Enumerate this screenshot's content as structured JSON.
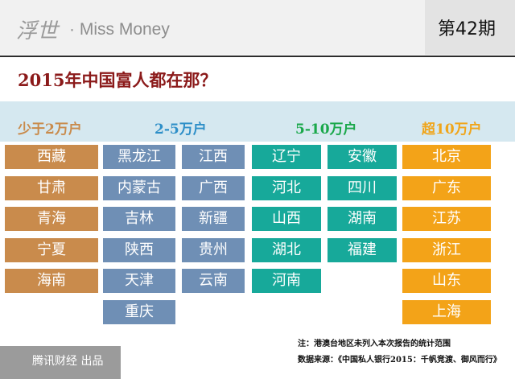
{
  "header": {
    "brand_cn": "浮世",
    "brand_en": "· Miss Money",
    "issue": "第42期"
  },
  "chart_data": {
    "type": "table",
    "title": "2015年中国富人都在那？",
    "categories": [
      "少于2万户",
      "2-5万户",
      "5-10万户",
      "超10万户"
    ],
    "colors": {
      "少于2万户": "#c98b4c",
      "2-5万户": "#6f8fb5",
      "5-10万户": "#17a99a",
      "超10万户": "#f3a318",
      "title": "#8b1a1a",
      "band": "#d5e8f0"
    },
    "groups": [
      {
        "name": "少于2万户",
        "regions": [
          "西藏",
          "甘肃",
          "青海",
          "宁夏",
          "海南"
        ]
      },
      {
        "name": "2-5万户",
        "regions": [
          "黑龙江",
          "内蒙古",
          "吉林",
          "陕西",
          "天津",
          "重庆",
          "江西",
          "广西",
          "新疆",
          "贵州",
          "云南"
        ]
      },
      {
        "name": "5-10万户",
        "regions": [
          "辽宁",
          "河北",
          "山西",
          "湖北",
          "河南",
          "安徽",
          "四川",
          "湖南",
          "福建"
        ]
      },
      {
        "name": "超10万户",
        "regions": [
          "北京",
          "广东",
          "江苏",
          "浙江",
          "山东",
          "上海"
        ]
      }
    ],
    "notes": [
      "注：港澳台地区未列入本次报告的统计范围",
      "数据来源：《中国私人银行2015：千帆竞渡、御风而行》"
    ]
  },
  "footer": {
    "text": "腾讯财经 出品"
  }
}
